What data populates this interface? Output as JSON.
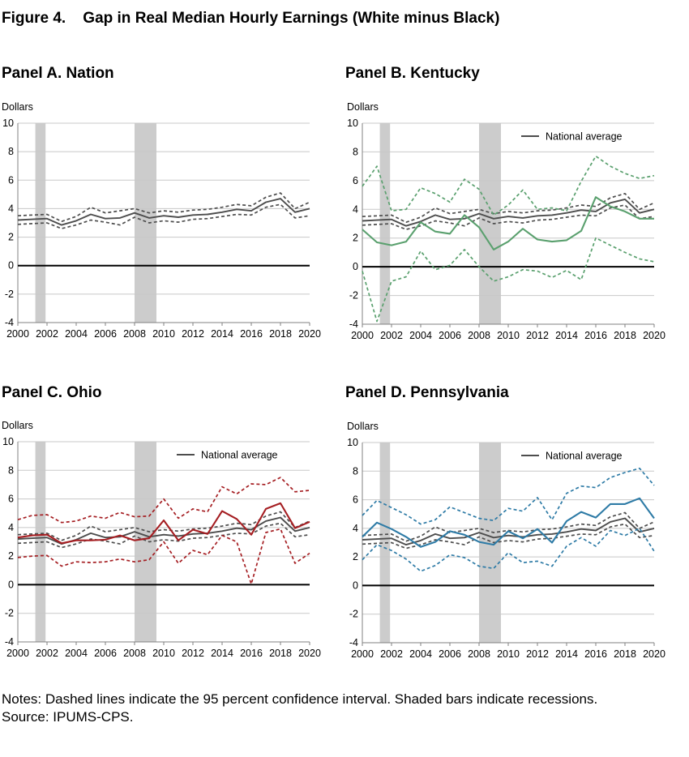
{
  "figure": {
    "title": "Figure 4.    Gap in Real Median Hourly Earnings (White minus Black)",
    "notes": "Notes: Dashed lines indicate the 95 percent confidence interval. Shaded bars indicate recessions.",
    "source": "Source: IPUMS-CPS."
  },
  "colors": {
    "national": "#4d4d4d",
    "kentucky": "#5aa06e",
    "ohio": "#a51e22",
    "pennsylvania": "#2e7ba6",
    "recession": "#cccccc"
  },
  "chart_data": [
    {
      "type": "line",
      "title": "Panel A. Nation",
      "ylabel": "Dollars",
      "ylim": [
        -4,
        10
      ],
      "yticks": [
        10,
        8,
        6,
        4,
        2,
        0,
        -2,
        -4
      ],
      "xlim": [
        2000,
        2020
      ],
      "xticks": [
        "2000",
        "2002",
        "2004",
        "2006",
        "2008",
        "2010",
        "2012",
        "2014",
        "2016",
        "2018",
        "2020"
      ],
      "recessions": [
        [
          2001.2,
          2001.9
        ],
        [
          2008.0,
          2009.5
        ]
      ],
      "legend": "",
      "x": [
        2000,
        2001,
        2002,
        2003,
        2004,
        2005,
        2006,
        2007,
        2008,
        2009,
        2010,
        2011,
        2012,
        2013,
        2014,
        2015,
        2016,
        2017,
        2018,
        2019,
        2020
      ],
      "series": [
        {
          "name": "",
          "color_key": "national",
          "style": "solid",
          "values": [
            3.2,
            3.25,
            3.3,
            2.85,
            3.15,
            3.6,
            3.3,
            3.35,
            3.7,
            3.35,
            3.5,
            3.4,
            3.55,
            3.6,
            3.75,
            3.95,
            3.85,
            4.45,
            4.7,
            3.75,
            4.0
          ]
        },
        {
          "name": "",
          "color_key": "national",
          "style": "dashed",
          "values": [
            3.5,
            3.55,
            3.6,
            3.1,
            3.45,
            4.1,
            3.7,
            3.85,
            4.0,
            3.7,
            3.85,
            3.75,
            3.9,
            3.95,
            4.1,
            4.3,
            4.2,
            4.8,
            5.1,
            4.0,
            4.45
          ]
        },
        {
          "name": "",
          "color_key": "national",
          "style": "dashed",
          "values": [
            2.9,
            2.95,
            3.0,
            2.6,
            2.85,
            3.2,
            3.05,
            2.85,
            3.4,
            3.0,
            3.15,
            3.05,
            3.25,
            3.3,
            3.45,
            3.6,
            3.55,
            4.1,
            4.3,
            3.35,
            3.5
          ]
        }
      ]
    },
    {
      "type": "line",
      "title": "Panel B. Kentucky",
      "ylabel": "Dollars",
      "ylim": [
        -4,
        10
      ],
      "yticks": [
        10,
        8,
        6,
        4,
        2,
        0,
        -2,
        -4
      ],
      "xlim": [
        2000,
        2020
      ],
      "xticks": [
        "2000",
        "2002",
        "2004",
        "2006",
        "2008",
        "2010",
        "2012",
        "2014",
        "2016",
        "2018",
        "2020"
      ],
      "recessions": [
        [
          2001.2,
          2001.9
        ],
        [
          2008.0,
          2009.5
        ]
      ],
      "legend": "National average",
      "x": [
        2000,
        2001,
        2002,
        2003,
        2004,
        2005,
        2006,
        2007,
        2008,
        2009,
        2010,
        2011,
        2012,
        2013,
        2014,
        2015,
        2016,
        2017,
        2018,
        2019,
        2020
      ],
      "series": [
        {
          "name": "National average",
          "color_key": "national",
          "style": "solid",
          "values": [
            3.2,
            3.25,
            3.3,
            2.85,
            3.15,
            3.6,
            3.3,
            3.35,
            3.7,
            3.35,
            3.5,
            3.4,
            3.55,
            3.6,
            3.75,
            3.95,
            3.85,
            4.45,
            4.7,
            3.75,
            4.0
          ]
        },
        {
          "name": "",
          "color_key": "national",
          "style": "dashed",
          "values": [
            3.5,
            3.55,
            3.6,
            3.1,
            3.45,
            4.1,
            3.7,
            3.85,
            4.0,
            3.7,
            3.85,
            3.75,
            3.9,
            3.95,
            4.1,
            4.3,
            4.2,
            4.8,
            5.1,
            4.0,
            4.45
          ]
        },
        {
          "name": "",
          "color_key": "national",
          "style": "dashed",
          "values": [
            2.9,
            2.95,
            3.0,
            2.6,
            2.85,
            3.2,
            3.05,
            2.85,
            3.4,
            3.0,
            3.15,
            3.05,
            3.25,
            3.3,
            3.45,
            3.6,
            3.55,
            4.1,
            4.3,
            3.35,
            3.5
          ]
        },
        {
          "name": "",
          "color_key": "kentucky",
          "style": "solid",
          "values": [
            2.6,
            1.7,
            1.5,
            1.75,
            3.1,
            2.45,
            2.3,
            3.6,
            2.75,
            1.2,
            1.75,
            2.65,
            1.9,
            1.75,
            1.85,
            2.5,
            4.85,
            4.2,
            3.85,
            3.35,
            3.35
          ]
        },
        {
          "name": "",
          "color_key": "kentucky",
          "style": "dashed",
          "values": [
            5.6,
            7.0,
            3.9,
            4.0,
            5.5,
            5.1,
            4.5,
            6.1,
            5.4,
            3.6,
            4.3,
            5.35,
            4.0,
            4.1,
            3.9,
            5.95,
            7.7,
            7.0,
            6.5,
            6.15,
            6.35
          ]
        },
        {
          "name": "",
          "color_key": "kentucky",
          "style": "dashed",
          "values": [
            -0.3,
            -3.8,
            -1.0,
            -0.7,
            1.1,
            -0.2,
            0.1,
            1.2,
            0.0,
            -1.0,
            -0.7,
            -0.2,
            -0.3,
            -0.75,
            -0.25,
            -0.9,
            2.0,
            1.5,
            1.0,
            0.55,
            0.35
          ]
        }
      ]
    },
    {
      "type": "line",
      "title": "Panel C. Ohio",
      "ylabel": "Dollars",
      "ylim": [
        -4,
        10
      ],
      "yticks": [
        10,
        8,
        6,
        4,
        2,
        0,
        -2,
        -4
      ],
      "xlim": [
        2000,
        2020
      ],
      "xticks": [
        "2000",
        "2002",
        "2004",
        "2006",
        "2008",
        "2010",
        "2012",
        "2014",
        "2016",
        "2018",
        "2020"
      ],
      "recessions": [
        [
          2001.2,
          2001.9
        ],
        [
          2008.0,
          2009.5
        ]
      ],
      "legend": "National average",
      "x": [
        2000,
        2001,
        2002,
        2003,
        2004,
        2005,
        2006,
        2007,
        2008,
        2009,
        2010,
        2011,
        2012,
        2013,
        2014,
        2015,
        2016,
        2017,
        2018,
        2019,
        2020
      ],
      "series": [
        {
          "name": "National average",
          "color_key": "national",
          "style": "solid",
          "values": [
            3.2,
            3.25,
            3.3,
            2.85,
            3.15,
            3.6,
            3.3,
            3.35,
            3.7,
            3.35,
            3.5,
            3.4,
            3.55,
            3.6,
            3.75,
            3.95,
            3.85,
            4.45,
            4.7,
            3.75,
            4.0
          ]
        },
        {
          "name": "",
          "color_key": "national",
          "style": "dashed",
          "values": [
            3.5,
            3.55,
            3.6,
            3.1,
            3.45,
            4.1,
            3.7,
            3.85,
            4.0,
            3.7,
            3.85,
            3.75,
            3.9,
            3.95,
            4.1,
            4.3,
            4.2,
            4.8,
            5.1,
            4.0,
            4.45
          ]
        },
        {
          "name": "",
          "color_key": "national",
          "style": "dashed",
          "values": [
            2.9,
            2.95,
            3.0,
            2.6,
            2.85,
            3.2,
            3.05,
            2.85,
            3.4,
            3.0,
            3.15,
            3.05,
            3.25,
            3.3,
            3.45,
            3.6,
            3.55,
            4.1,
            4.3,
            3.35,
            3.5
          ]
        },
        {
          "name": "",
          "color_key": "ohio",
          "style": "solid",
          "values": [
            3.3,
            3.45,
            3.5,
            2.9,
            3.1,
            3.1,
            3.15,
            3.45,
            3.1,
            3.25,
            4.5,
            3.1,
            3.85,
            3.55,
            5.15,
            4.6,
            3.5,
            5.3,
            5.7,
            3.95,
            4.4
          ]
        },
        {
          "name": "",
          "color_key": "ohio",
          "style": "dashed",
          "values": [
            4.55,
            4.85,
            4.9,
            4.35,
            4.45,
            4.8,
            4.65,
            5.05,
            4.75,
            4.8,
            6.0,
            4.65,
            5.3,
            5.1,
            6.85,
            6.35,
            7.05,
            7.0,
            7.5,
            6.5,
            6.6
          ]
        },
        {
          "name": "",
          "color_key": "ohio",
          "style": "dashed",
          "values": [
            1.9,
            2.0,
            2.05,
            1.3,
            1.6,
            1.55,
            1.6,
            1.8,
            1.6,
            1.75,
            3.0,
            1.5,
            2.4,
            2.1,
            3.45,
            3.0,
            0.05,
            3.65,
            3.9,
            1.5,
            2.2
          ]
        }
      ]
    },
    {
      "type": "line",
      "title": "Panel D. Pennsylvania",
      "ylabel": "Dollars",
      "ylim": [
        -4,
        10
      ],
      "yticks": [
        10,
        8,
        6,
        4,
        2,
        0,
        -2,
        -4
      ],
      "xlim": [
        2000,
        2020
      ],
      "xticks": [
        "2000",
        "2002",
        "2004",
        "2006",
        "2008",
        "2010",
        "2012",
        "2014",
        "2016",
        "2018",
        "2020"
      ],
      "recessions": [
        [
          2001.2,
          2001.9
        ],
        [
          2008.0,
          2009.5
        ]
      ],
      "legend": "National average",
      "x": [
        2000,
        2001,
        2002,
        2003,
        2004,
        2005,
        2006,
        2007,
        2008,
        2009,
        2010,
        2011,
        2012,
        2013,
        2014,
        2015,
        2016,
        2017,
        2018,
        2019,
        2020
      ],
      "series": [
        {
          "name": "National average",
          "color_key": "national",
          "style": "solid",
          "values": [
            3.2,
            3.25,
            3.3,
            2.85,
            3.15,
            3.6,
            3.3,
            3.35,
            3.7,
            3.35,
            3.5,
            3.4,
            3.55,
            3.6,
            3.75,
            3.95,
            3.85,
            4.45,
            4.7,
            3.75,
            4.0
          ]
        },
        {
          "name": "",
          "color_key": "national",
          "style": "dashed",
          "values": [
            3.5,
            3.55,
            3.6,
            3.1,
            3.45,
            4.1,
            3.7,
            3.85,
            4.0,
            3.7,
            3.85,
            3.75,
            3.9,
            3.95,
            4.1,
            4.3,
            4.2,
            4.8,
            5.1,
            4.0,
            4.45
          ]
        },
        {
          "name": "",
          "color_key": "national",
          "style": "dashed",
          "values": [
            2.9,
            2.95,
            3.0,
            2.6,
            2.85,
            3.2,
            3.05,
            2.85,
            3.4,
            3.0,
            3.15,
            3.05,
            3.25,
            3.3,
            3.45,
            3.6,
            3.55,
            4.1,
            4.3,
            3.35,
            3.5
          ]
        },
        {
          "name": "",
          "color_key": "pennsylvania",
          "style": "solid",
          "values": [
            3.4,
            4.4,
            3.95,
            3.4,
            2.7,
            3.05,
            3.8,
            3.55,
            3.05,
            2.85,
            3.8,
            3.3,
            3.95,
            3.0,
            4.5,
            5.15,
            4.75,
            5.7,
            5.7,
            6.1,
            4.7
          ]
        },
        {
          "name": "",
          "color_key": "pennsylvania",
          "style": "dashed",
          "values": [
            4.9,
            5.95,
            5.45,
            4.95,
            4.3,
            4.6,
            5.5,
            5.1,
            4.7,
            4.55,
            5.4,
            5.2,
            6.15,
            4.6,
            6.45,
            6.95,
            6.85,
            7.55,
            7.9,
            8.2,
            7.0
          ]
        },
        {
          "name": "",
          "color_key": "pennsylvania",
          "style": "dashed",
          "values": [
            1.8,
            2.85,
            2.45,
            1.85,
            1.0,
            1.4,
            2.15,
            1.95,
            1.35,
            1.2,
            2.3,
            1.6,
            1.7,
            1.35,
            2.75,
            3.35,
            2.75,
            3.85,
            3.5,
            4.0,
            2.4
          ]
        }
      ]
    }
  ]
}
